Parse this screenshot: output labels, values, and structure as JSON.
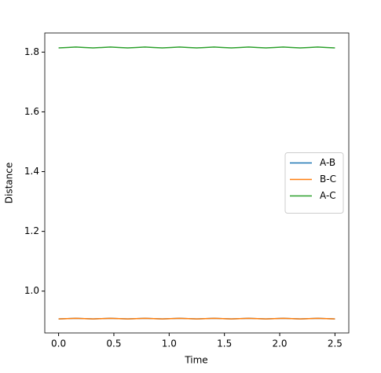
{
  "chart_data": {
    "type": "line",
    "x_label": "Time",
    "y_label": "Distance",
    "x": [
      0,
      0.078125,
      0.15625,
      0.234375,
      0.3125,
      0.390625,
      0.46875,
      0.546875,
      0.625,
      0.703125,
      0.78125,
      0.859375,
      0.9375,
      1.015625,
      1.09375,
      1.171875,
      1.25,
      1.328125,
      1.40625,
      1.484375,
      1.5625,
      1.640625,
      1.71875,
      1.796875,
      1.875,
      1.953125,
      2.03125,
      2.109375,
      2.1875,
      2.265625,
      2.34375,
      2.421875,
      2.5
    ],
    "series": [
      {
        "name": "A-B",
        "color": "#1f77b4",
        "values": [
          0.907,
          0.908,
          0.909,
          0.908,
          0.907,
          0.908,
          0.909,
          0.908,
          0.907,
          0.908,
          0.909,
          0.908,
          0.907,
          0.908,
          0.909,
          0.908,
          0.907,
          0.908,
          0.909,
          0.908,
          0.907,
          0.908,
          0.909,
          0.908,
          0.907,
          0.908,
          0.909,
          0.908,
          0.907,
          0.908,
          0.909,
          0.908,
          0.907
        ]
      },
      {
        "name": "B-C",
        "color": "#ff7f0e",
        "values": [
          0.907,
          0.908,
          0.909,
          0.908,
          0.907,
          0.908,
          0.909,
          0.908,
          0.907,
          0.908,
          0.909,
          0.908,
          0.907,
          0.908,
          0.909,
          0.908,
          0.907,
          0.908,
          0.909,
          0.908,
          0.907,
          0.908,
          0.909,
          0.908,
          0.907,
          0.908,
          0.909,
          0.908,
          0.907,
          0.908,
          0.909,
          0.908,
          0.907
        ]
      },
      {
        "name": "A-C",
        "color": "#2ca02c",
        "values": [
          1.814,
          1.8155,
          1.817,
          1.8155,
          1.814,
          1.8155,
          1.817,
          1.8155,
          1.814,
          1.8155,
          1.817,
          1.8155,
          1.814,
          1.8155,
          1.817,
          1.8155,
          1.814,
          1.8155,
          1.817,
          1.8155,
          1.814,
          1.8155,
          1.817,
          1.8155,
          1.814,
          1.8155,
          1.817,
          1.8155,
          1.814,
          1.8155,
          1.817,
          1.8155,
          1.814
        ]
      }
    ],
    "xlim": [
      -0.125,
      2.625
    ],
    "xticks": [
      {
        "value": 0,
        "label": "0.0"
      },
      0.5,
      {
        "value": 1,
        "label": "1.0"
      },
      1.5,
      {
        "value": 2,
        "label": "2.0"
      },
      2.5
    ],
    "ylim": [
      0.86,
      1.864
    ],
    "yticks": [
      {
        "value": 1,
        "label": "1.0"
      },
      1.2,
      1.4,
      1.6,
      1.8
    ],
    "legend": "center right"
  }
}
